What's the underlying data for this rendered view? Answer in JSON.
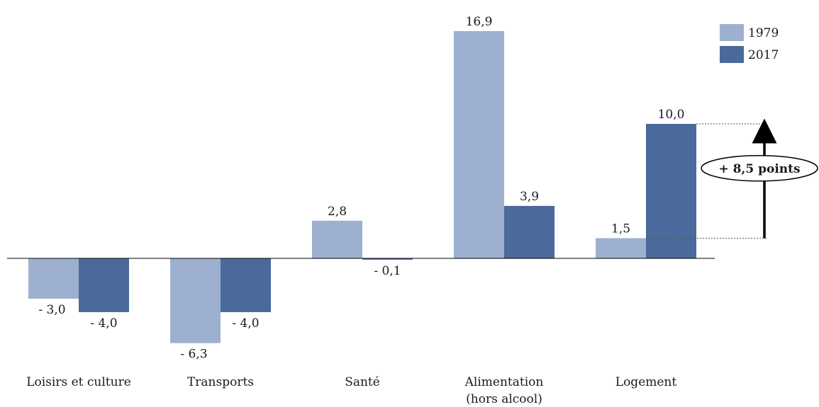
{
  "chart_data": {
    "type": "bar",
    "categories": [
      [
        "Loisirs et culture"
      ],
      [
        "Transports"
      ],
      [
        "Santé"
      ],
      [
        "Alimentation",
        "(hors alcool)"
      ],
      [
        "Logement"
      ]
    ],
    "series": [
      {
        "name": "1979",
        "color": "#9db0cf",
        "values": [
          -3.0,
          -6.3,
          2.8,
          16.9,
          1.5
        ],
        "labels": [
          "- 3,0",
          "- 6,3",
          "2,8",
          "16,9",
          "1,5"
        ]
      },
      {
        "name": "2017",
        "color": "#4a6a9b",
        "values": [
          -4.0,
          -4.0,
          -0.1,
          3.9,
          10.0
        ],
        "labels": [
          "- 4,0",
          "- 4,0",
          "- 0,1",
          "3,9",
          "10,0"
        ]
      }
    ],
    "ylim": [
      -7,
      17.5
    ],
    "annotation": {
      "text": "+ 8,5 points",
      "from": 1.5,
      "to": 10.0,
      "category_index": 4
    },
    "legend": "top-right",
    "title": "",
    "xlabel": "",
    "ylabel": "",
    "grid": false
  }
}
